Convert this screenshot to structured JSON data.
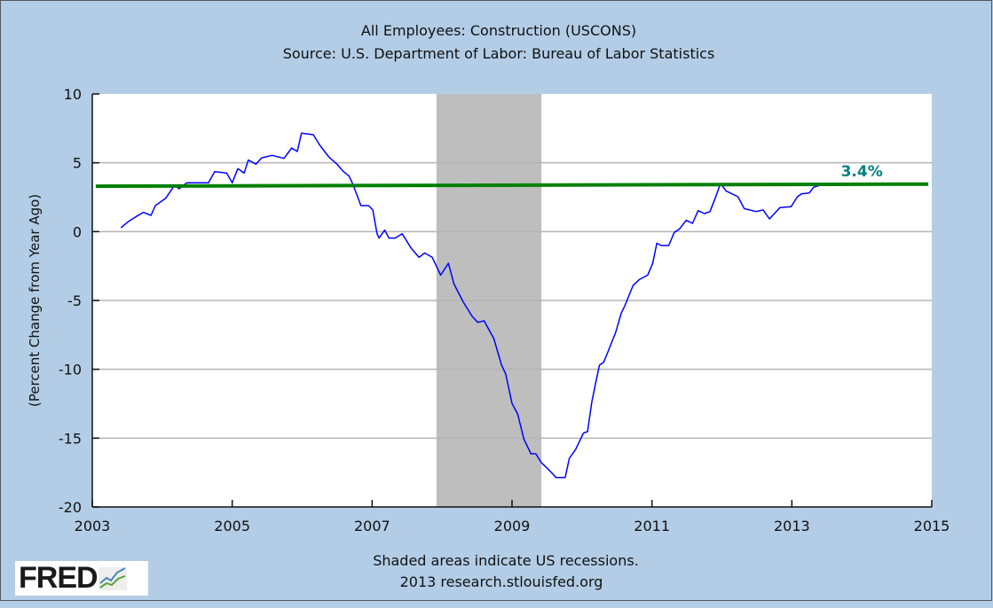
{
  "chart_data": {
    "type": "line",
    "title": "All Employees: Construction (USCONS)",
    "subtitle": "Source: U.S. Department of Labor: Bureau of Labor Statistics",
    "xlabel": "",
    "ylabel": "(Percent Change from Year Ago)",
    "xlim": [
      2003,
      2015
    ],
    "ylim": [
      -20,
      10
    ],
    "xticks": [
      2003,
      2005,
      2007,
      2009,
      2011,
      2013,
      2015
    ],
    "yticks": [
      10,
      5,
      0,
      -5,
      -10,
      -15,
      -20
    ],
    "grid": true,
    "recessions": [
      [
        2007.92,
        2009.42
      ]
    ],
    "series": [
      {
        "name": "USCONS percent change from year ago",
        "color": "#0000ff",
        "x": [
          2003.41,
          2003.52,
          2003.63,
          2003.73,
          2003.84,
          2003.9,
          2004.05,
          2004.18,
          2004.24,
          2004.35,
          2004.66,
          2004.75,
          2004.92,
          2005.0,
          2005.08,
          2005.17,
          2005.23,
          2005.34,
          2005.42,
          2005.57,
          2005.74,
          2005.85,
          2005.93,
          2005.99,
          2006.16,
          2006.25,
          2006.38,
          2006.5,
          2006.59,
          2006.67,
          2006.73,
          2006.84,
          2006.95,
          2007.01,
          2007.07,
          2007.1,
          2007.18,
          2007.24,
          2007.33,
          2007.43,
          2007.56,
          2007.67,
          2007.75,
          2007.86,
          2007.98,
          2008.09,
          2008.17,
          2008.3,
          2008.43,
          2008.51,
          2008.6,
          2008.74,
          2008.85,
          2008.91,
          2009.0,
          2009.08,
          2009.17,
          2009.27,
          2009.34,
          2009.42,
          2009.55,
          2009.63,
          2009.76,
          2009.82,
          2009.91,
          2010.02,
          2010.08,
          2010.14,
          2010.2,
          2010.25,
          2010.31,
          2010.37,
          2010.48,
          2010.56,
          2010.61,
          2010.73,
          2010.82,
          2010.94,
          2011.01,
          2011.07,
          2011.13,
          2011.24,
          2011.32,
          2011.39,
          2011.49,
          2011.58,
          2011.66,
          2011.75,
          2011.83,
          2011.92,
          2011.98,
          2012.06,
          2012.23,
          2012.32,
          2012.49,
          2012.59,
          2012.68,
          2012.83,
          2012.99,
          2013.08,
          2013.14,
          2013.25,
          2013.31,
          2013.42
        ],
        "y": [
          0.28,
          0.75,
          1.1,
          1.4,
          1.18,
          1.89,
          2.43,
          3.39,
          3.11,
          3.54,
          3.54,
          4.36,
          4.25,
          3.54,
          4.57,
          4.25,
          5.2,
          4.9,
          5.36,
          5.54,
          5.32,
          6.07,
          5.82,
          7.15,
          7.04,
          6.29,
          5.43,
          4.89,
          4.36,
          4.04,
          3.39,
          1.89,
          1.89,
          1.57,
          -0.15,
          -0.47,
          0.11,
          -0.47,
          -0.47,
          -0.15,
          -1.22,
          -1.87,
          -1.55,
          -1.87,
          -3.16,
          -2.3,
          -3.8,
          -5.09,
          -6.16,
          -6.59,
          -6.48,
          -7.77,
          -9.7,
          -10.35,
          -12.49,
          -13.24,
          -15.07,
          -16.14,
          -16.14,
          -16.79,
          -17.43,
          -17.86,
          -17.86,
          -16.46,
          -15.82,
          -14.64,
          -14.53,
          -12.38,
          -10.88,
          -9.7,
          -9.49,
          -8.74,
          -7.34,
          -5.94,
          -5.41,
          -3.91,
          -3.48,
          -3.16,
          -2.3,
          -0.84,
          -1.01,
          -1.01,
          -0.05,
          0.17,
          0.82,
          0.6,
          1.52,
          1.31,
          1.46,
          2.64,
          3.5,
          2.96,
          2.53,
          1.67,
          1.46,
          1.57,
          0.92,
          1.74,
          1.82,
          2.53,
          2.75,
          2.81,
          3.22,
          3.39
        ]
      },
      {
        "name": "Reference line",
        "color": "#008000",
        "x": [
          2003.05,
          2014.95
        ],
        "y": [
          3.3,
          3.45
        ]
      }
    ],
    "annotations": [
      {
        "text": "3.4%",
        "x": 2014.0,
        "y": 4.4,
        "color": "#008080"
      }
    ]
  },
  "footer": {
    "note": "Shaded areas indicate US recessions.",
    "source": "2013 research.stlouisfed.org",
    "logo": "FRED"
  },
  "colors": {
    "background": "#b3cde6",
    "plot": "#ffffff",
    "recession": "#bebebe",
    "grid": "#b4b4b4"
  }
}
